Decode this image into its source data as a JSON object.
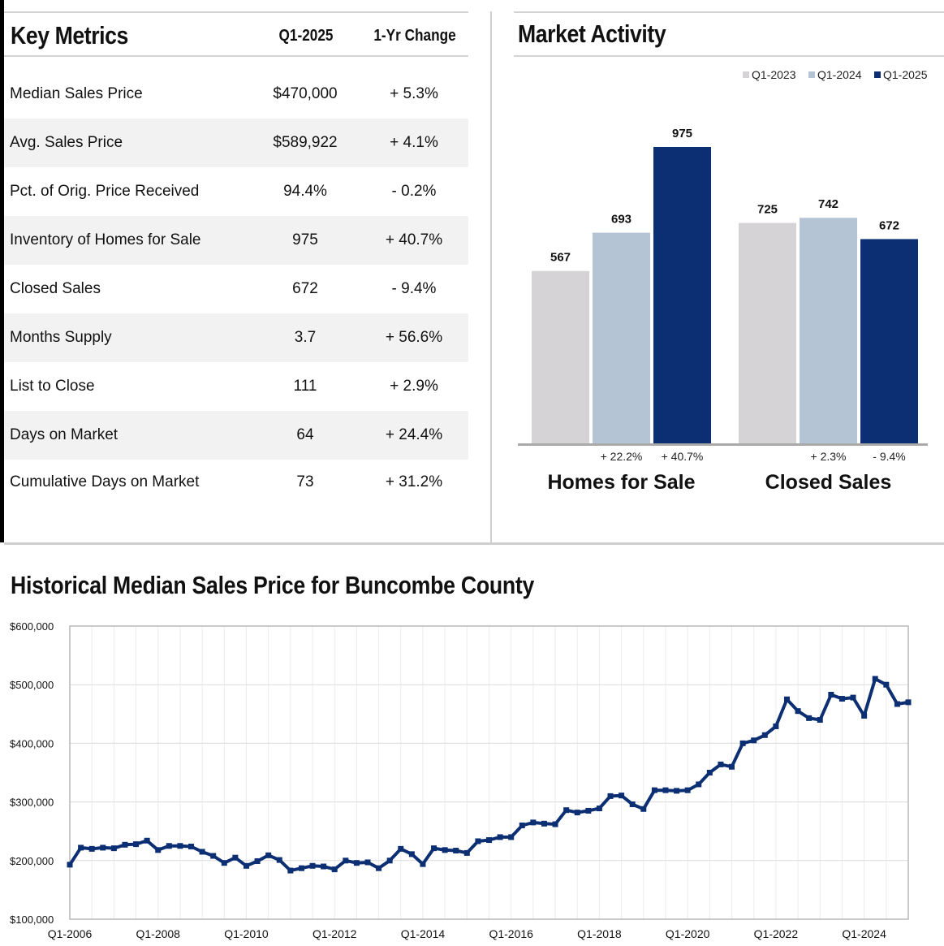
{
  "key_metrics": {
    "title": "Key Metrics",
    "col_period": "Q1-2025",
    "col_change": "1-Yr Change",
    "rows": [
      {
        "label": "Median Sales Price",
        "value": "$470,000",
        "change": "+ 5.3%"
      },
      {
        "label": "Avg. Sales Price",
        "value": "$589,922",
        "change": "+ 4.1%"
      },
      {
        "label": "Pct. of Orig. Price Received",
        "value": "94.4%",
        "change": "- 0.2%"
      },
      {
        "label": "Inventory of Homes for Sale",
        "value": "975",
        "change": "+ 40.7%"
      },
      {
        "label": "Closed Sales",
        "value": "672",
        "change": "- 9.4%"
      },
      {
        "label": "Months Supply",
        "value": "3.7",
        "change": "+ 56.6%"
      },
      {
        "label": "List to Close",
        "value": "111",
        "change": "+ 2.9%"
      },
      {
        "label": "Days on Market",
        "value": "64",
        "change": "+ 24.4%"
      },
      {
        "label": "Cumulative Days on Market",
        "value": "73",
        "change": "+ 31.2%"
      }
    ]
  },
  "market_activity": {
    "title": "Market Activity"
  },
  "historical": {
    "title": "Historical Median Sales Price for Buncombe County"
  },
  "colors": {
    "q1_2023": "#d6d3d6",
    "q1_2024": "#b5c4d4",
    "q1_2025": "#0c2f73",
    "line": "#0c2f73"
  },
  "chart_data": [
    {
      "type": "bar",
      "categories": [
        "Homes for Sale",
        "Closed Sales"
      ],
      "series": [
        {
          "name": "Q1-2023",
          "values": [
            567,
            725
          ]
        },
        {
          "name": "Q1-2024",
          "values": [
            693,
            742
          ]
        },
        {
          "name": "Q1-2025",
          "values": [
            975,
            672
          ]
        }
      ],
      "changes": [
        [
          "+ 22.2%",
          "+ 40.7%"
        ],
        [
          "+ 2.3%",
          "- 9.4%"
        ]
      ],
      "ylim": [
        0,
        1000
      ],
      "legend": "top-right"
    },
    {
      "type": "line",
      "x": [
        "Q1-2006",
        "Q2-2006",
        "Q3-2006",
        "Q4-2006",
        "Q1-2007",
        "Q2-2007",
        "Q3-2007",
        "Q4-2007",
        "Q1-2008",
        "Q2-2008",
        "Q3-2008",
        "Q4-2008",
        "Q1-2009",
        "Q2-2009",
        "Q3-2009",
        "Q4-2009",
        "Q1-2010",
        "Q2-2010",
        "Q3-2010",
        "Q4-2010",
        "Q1-2011",
        "Q2-2011",
        "Q3-2011",
        "Q4-2011",
        "Q1-2012",
        "Q2-2012",
        "Q3-2012",
        "Q4-2012",
        "Q1-2013",
        "Q2-2013",
        "Q3-2013",
        "Q4-2013",
        "Q1-2014",
        "Q2-2014",
        "Q3-2014",
        "Q4-2014",
        "Q1-2015",
        "Q2-2015",
        "Q3-2015",
        "Q4-2015",
        "Q1-2016",
        "Q2-2016",
        "Q3-2016",
        "Q4-2016",
        "Q1-2017",
        "Q2-2017",
        "Q3-2017",
        "Q4-2017",
        "Q1-2018",
        "Q2-2018",
        "Q3-2018",
        "Q4-2018",
        "Q1-2019",
        "Q2-2019",
        "Q3-2019",
        "Q4-2019",
        "Q1-2020",
        "Q2-2020",
        "Q3-2020",
        "Q4-2020",
        "Q1-2021",
        "Q2-2021",
        "Q3-2021",
        "Q4-2021",
        "Q1-2022",
        "Q2-2022",
        "Q3-2022",
        "Q4-2022",
        "Q1-2023",
        "Q2-2023",
        "Q3-2023",
        "Q4-2023",
        "Q1-2024",
        "Q2-2024",
        "Q3-2024",
        "Q4-2024",
        "Q1-2025"
      ],
      "values": [
        193000,
        222000,
        220000,
        222000,
        221000,
        227000,
        228000,
        234000,
        218000,
        225000,
        225000,
        224000,
        215000,
        208000,
        196000,
        205000,
        191000,
        199000,
        209000,
        201000,
        183000,
        187000,
        191000,
        190000,
        185000,
        200000,
        196000,
        197000,
        187000,
        200000,
        220000,
        211000,
        194000,
        221000,
        218000,
        217000,
        213000,
        233000,
        235000,
        240000,
        240000,
        260000,
        265000,
        263000,
        262000,
        286000,
        282000,
        285000,
        289000,
        310000,
        311000,
        296000,
        288000,
        320000,
        320000,
        319000,
        320000,
        330000,
        350000,
        364000,
        360000,
        400000,
        405000,
        414000,
        429000,
        475000,
        455000,
        443000,
        440000,
        483000,
        476000,
        478000,
        447000,
        510000,
        500000,
        467000,
        470000
      ],
      "ylim": [
        100000,
        600000
      ],
      "yticks": [
        "$100,000",
        "$200,000",
        "$300,000",
        "$400,000",
        "$500,000",
        "$600,000"
      ],
      "xticks": [
        "Q1-2006",
        "Q1-2008",
        "Q1-2010",
        "Q1-2012",
        "Q1-2014",
        "Q1-2016",
        "Q1-2018",
        "Q1-2020",
        "Q1-2022",
        "Q1-2024"
      ]
    }
  ]
}
